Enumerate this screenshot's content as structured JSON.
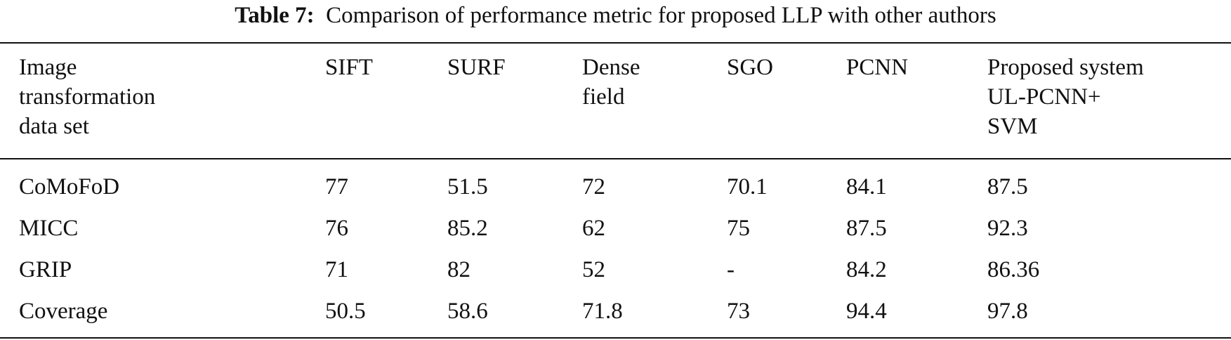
{
  "caption": {
    "label": "Table 7:",
    "text": "Comparison of performance metric for proposed LLP with other authors"
  },
  "columns": [
    {
      "lines": [
        "Image",
        "transformation",
        "data set"
      ]
    },
    {
      "lines": [
        "SIFT"
      ]
    },
    {
      "lines": [
        "SURF"
      ]
    },
    {
      "lines": [
        "Dense",
        "field"
      ]
    },
    {
      "lines": [
        "SGO"
      ]
    },
    {
      "lines": [
        "PCNN"
      ]
    },
    {
      "lines": [
        "Proposed system",
        "UL-PCNN+",
        "SVM"
      ]
    }
  ],
  "rows": [
    {
      "name": "CoMoFoD",
      "values": [
        "77",
        "51.5",
        "72",
        "70.1",
        "84.1",
        "87.5"
      ]
    },
    {
      "name": "MICC",
      "values": [
        "76",
        "85.2",
        "62",
        "75",
        "87.5",
        "92.3"
      ]
    },
    {
      "name": "GRIP",
      "values": [
        "71",
        "82",
        "52",
        "-",
        "84.2",
        "86.36"
      ]
    },
    {
      "name": "Coverage",
      "values": [
        "50.5",
        "58.6",
        "71.8",
        "73",
        "94.4",
        "97.8"
      ]
    }
  ]
}
